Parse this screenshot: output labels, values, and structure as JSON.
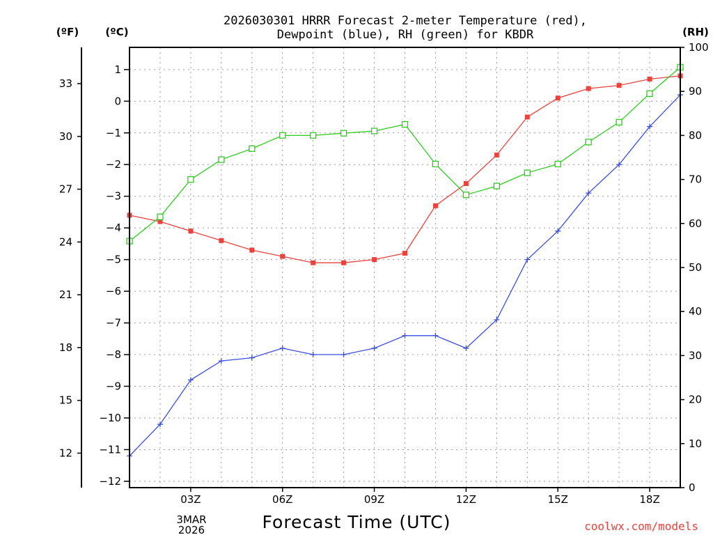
{
  "chart_data": {
    "type": "line",
    "title_line1": "2026030301 HRRR Forecast 2-meter Temperature (red),",
    "title_line2": "Dewpoint (blue), RH (green) for KBDR",
    "xlabel": "Forecast Time (UTC)",
    "credit": "coolwx.com/models",
    "left_outer_unit": "(ºF)",
    "left_inner_unit": "(ºC)",
    "right_unit": "(RH)",
    "date_label_line1": "3MAR",
    "date_label_line2": "2026",
    "x_hours": [
      1,
      2,
      3,
      4,
      5,
      6,
      7,
      8,
      9,
      10,
      11,
      12,
      13,
      14,
      15,
      16,
      17,
      18,
      19
    ],
    "x_range": [
      1,
      19
    ],
    "x_ticks": [
      {
        "hour": 3,
        "label": "03Z"
      },
      {
        "hour": 6,
        "label": "06Z"
      },
      {
        "hour": 9,
        "label": "09Z"
      },
      {
        "hour": 12,
        "label": "12Z"
      },
      {
        "hour": 15,
        "label": "15Z"
      },
      {
        "hour": 18,
        "label": "18Z"
      }
    ],
    "celsius_range": [
      -12.2,
      1.7
    ],
    "celsius_ticks": [
      "1",
      "0",
      "−1",
      "−2",
      "−3",
      "−4",
      "−5",
      "−6",
      "−7",
      "−8",
      "−9",
      "−10",
      "−11",
      "−12"
    ],
    "celsius_tick_values": [
      1,
      0,
      -1,
      -2,
      -3,
      -4,
      -5,
      -6,
      -7,
      -8,
      -9,
      -10,
      -11,
      -12
    ],
    "fahrenheit_ticks": [
      "33",
      "30",
      "27",
      "24",
      "21",
      "18",
      "15",
      "12"
    ],
    "fahrenheit_tick_values": [
      33,
      30,
      27,
      24,
      21,
      18,
      15,
      12
    ],
    "rh_range": [
      0,
      100
    ],
    "rh_ticks": [
      "100",
      "90",
      "80",
      "70",
      "60",
      "50",
      "40",
      "30",
      "20",
      "10",
      "0"
    ],
    "rh_tick_values": [
      100,
      90,
      80,
      70,
      60,
      50,
      40,
      30,
      20,
      10,
      0
    ],
    "series": [
      {
        "name": "Temperature",
        "axis": "celsius",
        "color": "#e8433c",
        "marker": "filled-square",
        "values": [
          -3.6,
          -3.8,
          -4.1,
          -4.4,
          -4.7,
          -4.9,
          -5.1,
          -5.1,
          -5.0,
          -4.8,
          -3.3,
          -2.6,
          -1.7,
          -0.5,
          0.1,
          0.4,
          0.5,
          0.7,
          0.8
        ]
      },
      {
        "name": "Dewpoint",
        "axis": "celsius",
        "color": "#3a4fe0",
        "marker": "plus",
        "values": [
          -11.2,
          -10.2,
          -8.8,
          -8.2,
          -8.1,
          -7.8,
          -8.0,
          -8.0,
          -7.8,
          -7.4,
          -7.4,
          -7.8,
          -6.9,
          -5.0,
          -4.1,
          -2.9,
          -2.0,
          -0.8,
          0.2
        ]
      },
      {
        "name": "RH",
        "axis": "rh",
        "color": "#2ecc1f",
        "marker": "open-square",
        "values": [
          56,
          61.5,
          70,
          74.5,
          77,
          80,
          80,
          80.5,
          81,
          82.5,
          73.5,
          66.5,
          68.5,
          71.5,
          73.5,
          78.5,
          83,
          89.5,
          95.5
        ]
      }
    ]
  }
}
